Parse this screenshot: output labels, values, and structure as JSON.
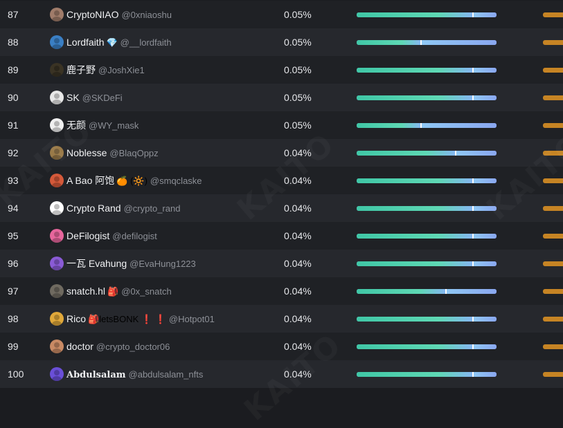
{
  "colors": {
    "row_odd": "#1f2125",
    "row_even": "#26282d",
    "bar_teal": "#40c7a6",
    "bar_blue": "#7a8fe8",
    "accent_orange": "#c68424",
    "handle_gray": "#8d9097"
  },
  "watermark_text": "KAITO",
  "rows": [
    {
      "rank": "87",
      "name": "CryptoNIAO",
      "suffix": "",
      "handle": "@0xniaoshu",
      "share": "0.05%",
      "marker": 0.83,
      "avatar_color": "#a07c6a",
      "bold": false
    },
    {
      "rank": "88",
      "name": "Lordfaith",
      "suffix": "💎",
      "handle": "@__lordfaith",
      "share": "0.05%",
      "marker": 0.46,
      "avatar_color": "#3a7fc4",
      "bold": false
    },
    {
      "rank": "89",
      "name": "鹿子野",
      "suffix": "",
      "handle": "@JoshXie1",
      "share": "0.05%",
      "marker": 0.83,
      "avatar_color": "#3a3324",
      "bold": false
    },
    {
      "rank": "90",
      "name": "SK",
      "suffix": "",
      "handle": "@SKDeFi",
      "share": "0.05%",
      "marker": 0.83,
      "avatar_color": "#e8e8e8",
      "bold": false
    },
    {
      "rank": "91",
      "name": "无颜",
      "suffix": "",
      "handle": "@WY_mask",
      "share": "0.05%",
      "marker": 0.46,
      "avatar_color": "#f0f0f0",
      "bold": false
    },
    {
      "rank": "92",
      "name": "Noblesse",
      "suffix": "",
      "handle": "@BlaqOppz",
      "share": "0.04%",
      "marker": 0.71,
      "avatar_color": "#9a7a48",
      "bold": false
    },
    {
      "rank": "93",
      "name": "A Bao 阿饱",
      "suffix": "🍊 (🔆)",
      "handle": "@smqclaske",
      "share": "0.04%",
      "marker": 0.83,
      "avatar_color": "#d4593a",
      "bold": false
    },
    {
      "rank": "94",
      "name": "Crypto Rand",
      "suffix": "",
      "handle": "@crypto_rand",
      "share": "0.04%",
      "marker": 0.83,
      "avatar_color": "#ffffff",
      "bold": false
    },
    {
      "rank": "95",
      "name": "DeFilogist",
      "suffix": "",
      "handle": "@defilogist",
      "share": "0.04%",
      "marker": 0.83,
      "avatar_color": "#e7669c",
      "bold": false
    },
    {
      "rank": "96",
      "name": "一瓦 Evahung",
      "suffix": "",
      "handle": "@EvaHung1223",
      "share": "0.04%",
      "marker": 0.83,
      "avatar_color": "#8a5bd6",
      "bold": false
    },
    {
      "rank": "97",
      "name": "snatch.hl",
      "suffix": "🎒",
      "handle": "@0x_snatch",
      "share": "0.04%",
      "marker": 0.64,
      "avatar_color": "#6f6a60",
      "bold": false
    },
    {
      "rank": "98",
      "name": "Rico",
      "suffix": "🎒letsBONK ❗ ❗",
      "handle": "@Hotpot01",
      "share": "0.04%",
      "marker": 0.83,
      "avatar_color": "#e0a83a",
      "bold": false
    },
    {
      "rank": "99",
      "name": "doctor",
      "suffix": "",
      "handle": "@crypto_doctor06",
      "share": "0.04%",
      "marker": 0.83,
      "avatar_color": "#c98a64",
      "bold": false
    },
    {
      "rank": "100",
      "name": "Abdulsalam",
      "suffix": "",
      "handle": "@abdulsalam_nfts",
      "share": "0.04%",
      "marker": 0.83,
      "avatar_color": "#6a4fd8",
      "bold": true
    }
  ]
}
